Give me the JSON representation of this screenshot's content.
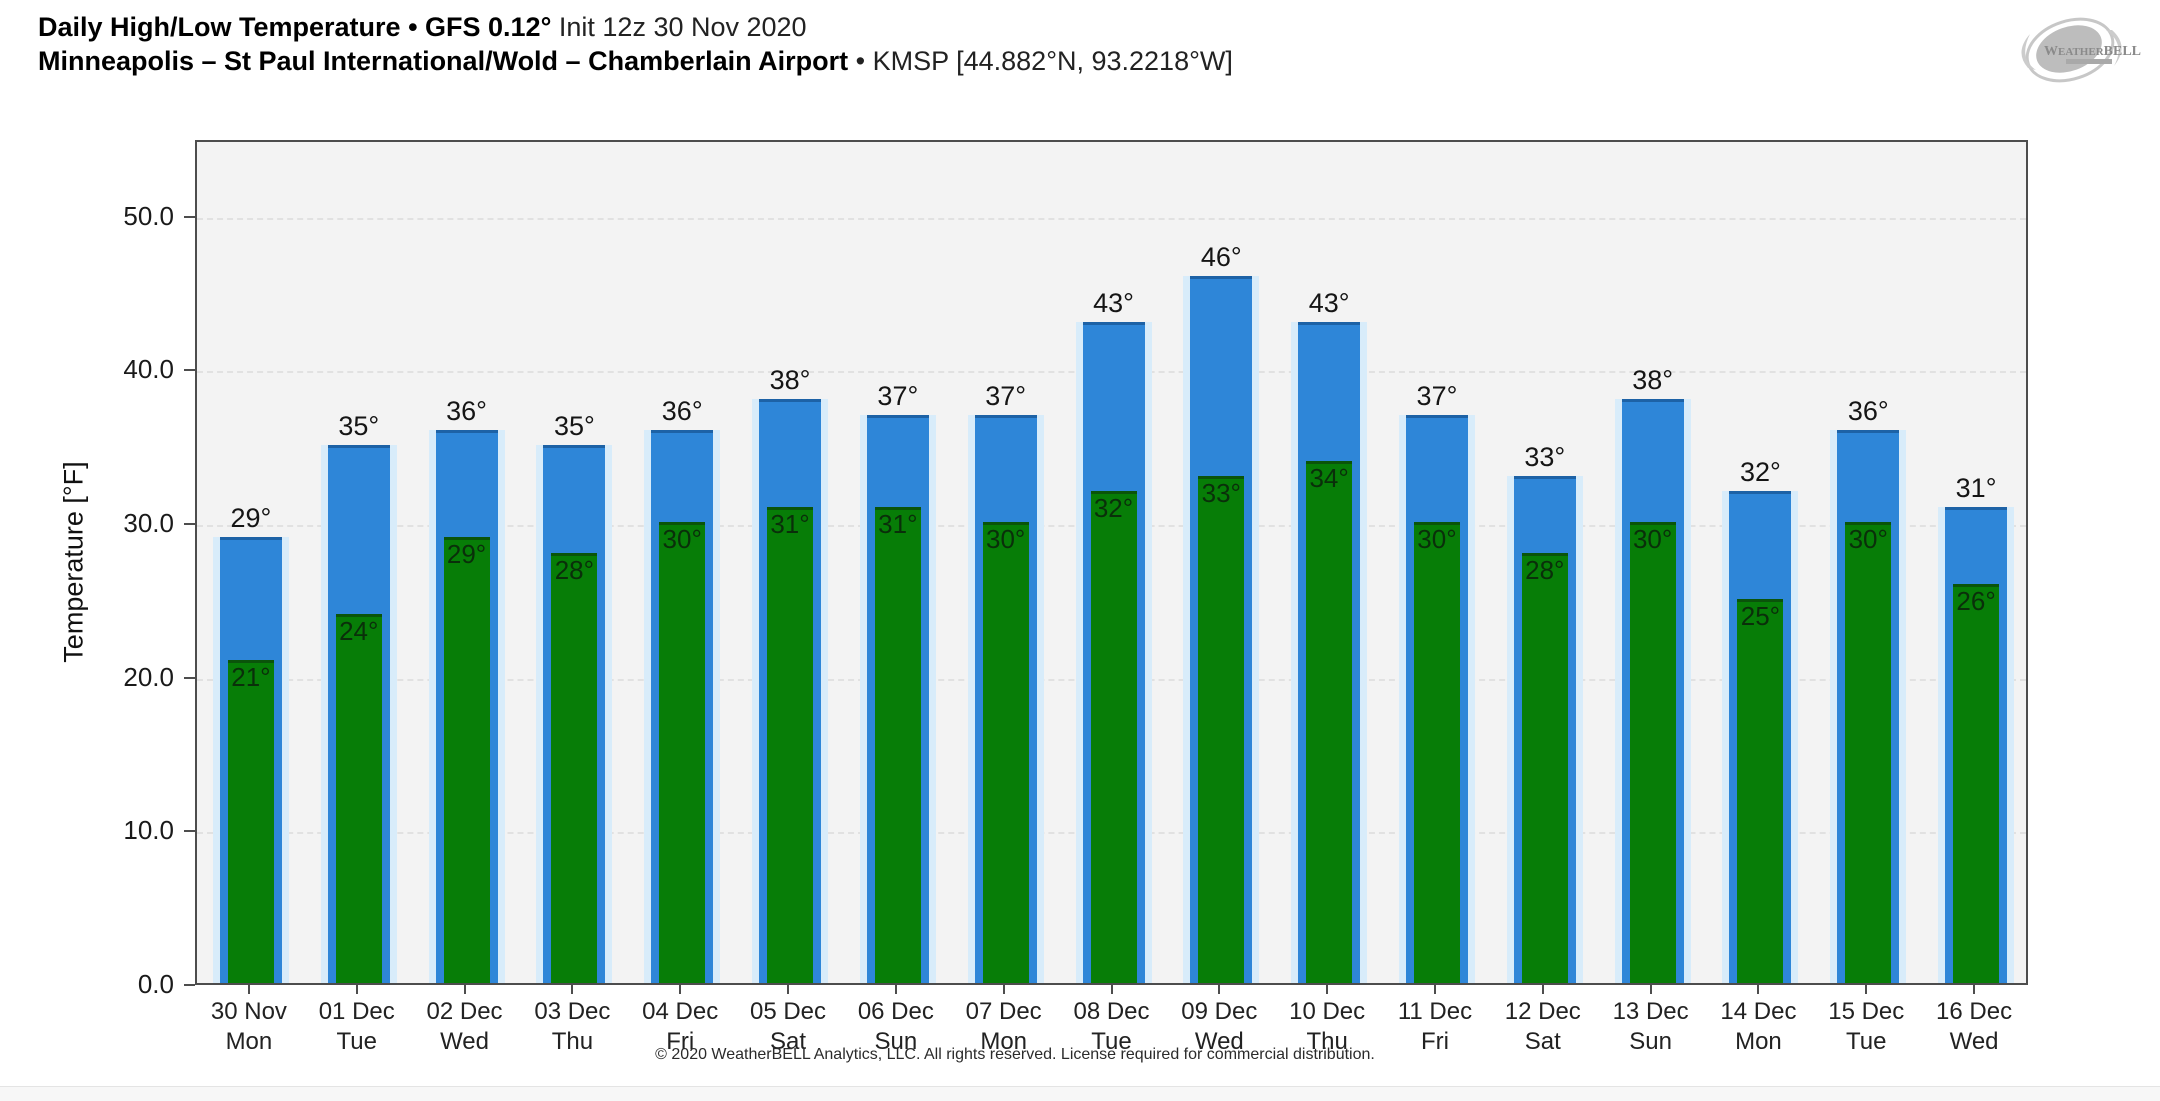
{
  "header": {
    "title_bold": "Daily High/Low Temperature • GFS 0.12°",
    "title_regular": "Init 12z 30 Nov 2020",
    "subtitle_bold": "Minneapolis – St Paul International/Wold – Chamberlain Airport",
    "subtitle_regular": "• KMSP [44.882°N, 93.2218°W]"
  },
  "logo": {
    "brand": "WeatherBELL"
  },
  "chart_data": {
    "type": "bar",
    "title": "Daily High/Low Temperature",
    "subtitle": "GFS 0.12° Init 12z 30 Nov 2020 — KMSP Minneapolis – St Paul International/Wold – Chamberlain Airport",
    "xlabel": "",
    "ylabel": "Temperature [°F]",
    "ylim": [
      0,
      55
    ],
    "yticks": [
      0,
      10,
      20,
      30,
      40,
      50
    ],
    "ytick_labels": [
      "0.0",
      "10.0",
      "20.0",
      "30.0",
      "40.0",
      "50.0"
    ],
    "grid": "horizontal-dashed",
    "legend_position": "none",
    "bar_label_suffix": "°",
    "categories": [
      "30 Nov",
      "01 Dec",
      "02 Dec",
      "03 Dec",
      "04 Dec",
      "05 Dec",
      "06 Dec",
      "07 Dec",
      "08 Dec",
      "09 Dec",
      "10 Dec",
      "11 Dec",
      "12 Dec",
      "13 Dec",
      "14 Dec",
      "15 Dec",
      "16 Dec"
    ],
    "weekdays": [
      "Mon",
      "Tue",
      "Wed",
      "Thu",
      "Fri",
      "Sat",
      "Sun",
      "Mon",
      "Tue",
      "Wed",
      "Thu",
      "Fri",
      "Sat",
      "Sun",
      "Mon",
      "Tue",
      "Wed"
    ],
    "series": [
      {
        "name": "High",
        "values": [
          29,
          35,
          36,
          35,
          36,
          38,
          37,
          37,
          43,
          46,
          43,
          37,
          33,
          38,
          32,
          36,
          31
        ]
      },
      {
        "name": "Low",
        "values": [
          21,
          24,
          29,
          28,
          30,
          31,
          31,
          30,
          32,
          33,
          34,
          30,
          28,
          30,
          25,
          30,
          26
        ]
      }
    ],
    "colors": {
      "high_bar": "#2e86d8",
      "high_bar_top": "#1d62a6",
      "high_halo": "#d8ecfa",
      "low_bar": "#077d07",
      "low_bar_top": "#0a540a",
      "plot_bg": "#f3f3f3",
      "grid": "#e1e1e1",
      "high_label": "#151515",
      "low_label": "#0a2f0a"
    }
  },
  "footer": {
    "copyright": "© 2020 WeatherBELL Analytics, LLC. All rights reserved. License required for commercial distribution."
  }
}
